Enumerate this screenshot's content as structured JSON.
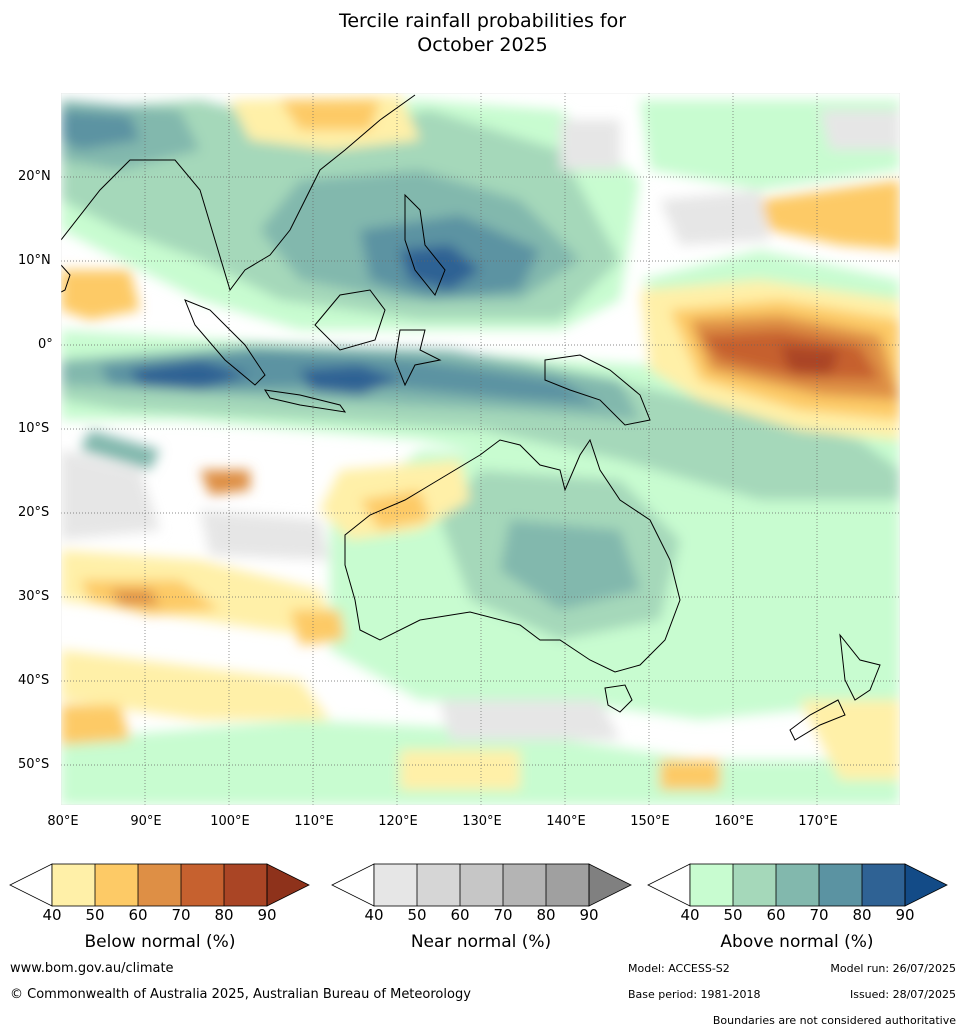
{
  "title_line1": "Tercile rainfall probabilities for",
  "title_line2": "October 2025",
  "lat_labels": [
    "20°N",
    "10°N",
    "0°",
    "10°S",
    "20°S",
    "30°S",
    "40°S",
    "50°S"
  ],
  "lon_labels": [
    "80°E",
    "90°E",
    "100°E",
    "110°E",
    "120°E",
    "130°E",
    "140°E",
    "150°E",
    "160°E",
    "170°E"
  ],
  "colorbars": [
    {
      "name": "Below normal (%)",
      "colors": [
        "#fff0a8",
        "#fdca66",
        "#de8f45",
        "#c6612f",
        "#aa4525"
      ],
      "extend_color": "#8e321b",
      "ticks": [
        "40",
        "50",
        "60",
        "70",
        "80",
        "90"
      ]
    },
    {
      "name": "Near normal (%)",
      "colors": [
        "#e6e6e6",
        "#d6d6d6",
        "#c6c6c6",
        "#b4b4b4",
        "#a0a0a0"
      ],
      "extend_color": "#808080",
      "ticks": [
        "40",
        "50",
        "60",
        "70",
        "80",
        "90"
      ]
    },
    {
      "name": "Above normal (%)",
      "colors": [
        "#c8fcd0",
        "#a5d8ba",
        "#82b8ad",
        "#5b93a2",
        "#2f6294"
      ],
      "extend_color": "#134b87",
      "ticks": [
        "40",
        "50",
        "60",
        "70",
        "80",
        "90"
      ]
    }
  ],
  "footer": {
    "url": "www.bom.gov.au/climate",
    "copyright": "© Commonwealth of Australia 2025, Australian Bureau of Meteorology",
    "model": "Model: ACCESS-S2",
    "model_run": "Model run: 26/07/2025",
    "base_period": "Base period: 1981-2018",
    "issued": "Issued: 28/07/2025",
    "disclaimer": "Boundaries are not considered authoritative"
  }
}
